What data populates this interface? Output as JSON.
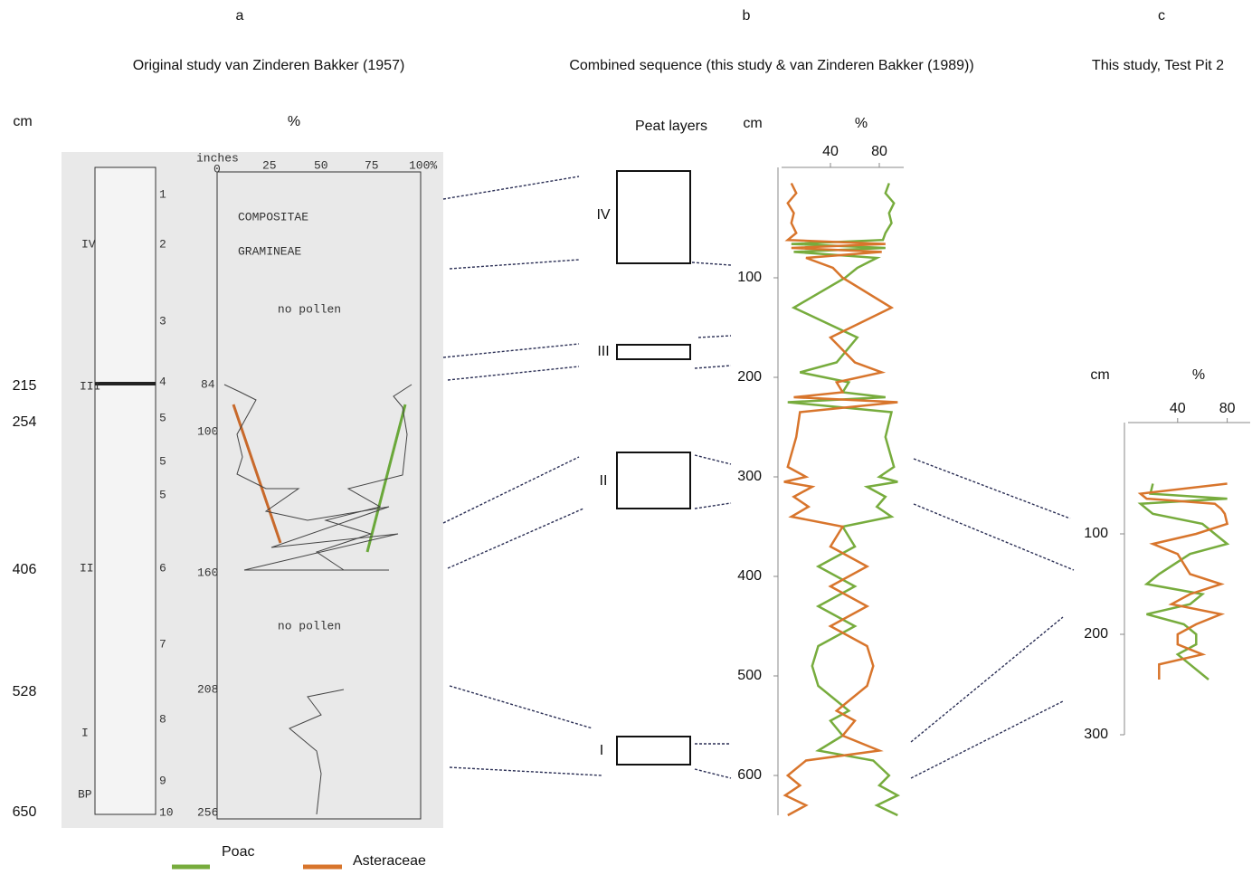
{
  "panels": [
    {
      "letter": "a",
      "title": "Original study van Zinderen Bakker (1957)"
    },
    {
      "letter": "b",
      "title": "Combined sequence (this study & van Zinderen Bakker (1989))"
    },
    {
      "letter": "c",
      "title": "This study, Test Pit 2"
    }
  ],
  "panel_a": {
    "unit": "cm",
    "percent": "%",
    "depth_labels": [
      "215",
      "254",
      "406",
      "528",
      "650"
    ],
    "scan": {
      "inches": "inches",
      "scale": [
        "0",
        "25",
        "50",
        "75",
        "100%"
      ],
      "depths": [
        "84",
        "100",
        "160",
        "208",
        "256"
      ],
      "legend": [
        "COMPOSITAE",
        "GRAMINEAE"
      ],
      "notes": [
        "no pollen",
        "no pollen"
      ],
      "zones": [
        "IV",
        "III",
        "II",
        "I",
        "BP"
      ],
      "layers": [
        "1",
        "2",
        "3",
        "4",
        "5",
        "5",
        "5",
        "6",
        "7",
        "8",
        "9",
        "10"
      ]
    }
  },
  "peat": {
    "title": "Peat layers",
    "layers": [
      "IV",
      "III",
      "II",
      "I"
    ]
  },
  "chart_data": [
    {
      "type": "line",
      "x_label": "cm",
      "y_label": "%",
      "x": [
        5,
        15,
        25,
        35,
        45,
        55,
        62,
        66,
        70,
        74,
        80,
        90,
        100,
        130,
        160,
        185,
        195,
        205,
        215,
        220,
        225,
        235,
        260,
        290,
        300,
        305,
        310,
        320,
        330,
        340,
        350,
        370,
        390,
        410,
        430,
        450,
        470,
        490,
        510,
        525,
        535,
        545,
        560,
        575,
        585,
        600,
        610,
        620,
        630,
        640
      ],
      "series": [
        {
          "name": "Poac",
          "color": "#77ac3d",
          "values": [
            88,
            85,
            92,
            88,
            90,
            85,
            83,
            8,
            85,
            10,
            78,
            62,
            52,
            10,
            62,
            45,
            15,
            55,
            50,
            85,
            5,
            90,
            85,
            92,
            80,
            95,
            70,
            85,
            78,
            90,
            50,
            60,
            30,
            60,
            30,
            60,
            30,
            25,
            30,
            45,
            55,
            40,
            50,
            30,
            75,
            88,
            80,
            95,
            78,
            95
          ]
        },
        {
          "name": "Asteraceae",
          "color": "#d8752c",
          "values": [
            8,
            12,
            5,
            10,
            8,
            12,
            5,
            85,
            8,
            82,
            20,
            42,
            50,
            90,
            40,
            60,
            82,
            45,
            50,
            10,
            95,
            15,
            12,
            5,
            20,
            2,
            25,
            10,
            22,
            8,
            50,
            40,
            70,
            40,
            70,
            40,
            70,
            75,
            70,
            55,
            45,
            60,
            50,
            80,
            20,
            5,
            15,
            3,
            20,
            5
          ]
        }
      ],
      "xlim": [
        0,
        640
      ],
      "xticks": [
        100,
        200,
        300,
        400,
        500,
        600
      ],
      "ylim": [
        0,
        100
      ],
      "yticks": [
        40,
        80
      ]
    },
    {
      "type": "line",
      "x_label": "cm",
      "y_label": "%",
      "x": [
        50,
        60,
        65,
        70,
        75,
        80,
        90,
        100,
        110,
        120,
        140,
        150,
        160,
        170,
        180,
        190,
        200,
        210,
        220,
        230,
        245
      ],
      "series": [
        {
          "name": "Poac",
          "color": "#77ac3d",
          "values": [
            20,
            18,
            80,
            10,
            15,
            20,
            60,
            70,
            80,
            50,
            25,
            15,
            60,
            50,
            15,
            45,
            55,
            55,
            40,
            50,
            65
          ]
        },
        {
          "name": "Asteraceae",
          "color": "#d8752c",
          "values": [
            80,
            10,
            15,
            70,
            75,
            78,
            80,
            55,
            20,
            40,
            50,
            75,
            50,
            35,
            75,
            55,
            40,
            40,
            60,
            25,
            25
          ]
        }
      ],
      "xlim": [
        0,
        300
      ],
      "xticks": [
        100,
        200,
        300
      ],
      "ylim": [
        0,
        100
      ],
      "yticks": [
        40,
        80
      ]
    }
  ]
}
